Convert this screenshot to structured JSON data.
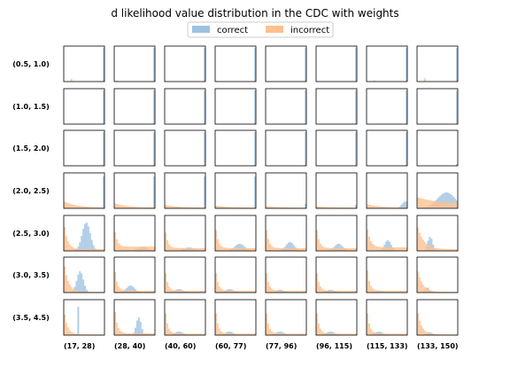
{
  "chart_data": {
    "type": "histogram-grid",
    "title": "d likelihood value distribution in the CDC with weights",
    "legend": {
      "placement": "top-center",
      "entries": [
        {
          "name": "correct",
          "color": "#9dc3e2"
        },
        {
          "name": "incorrect",
          "color": "#ffc08e"
        }
      ]
    },
    "row_labels": [
      "(0.5, 1.0)",
      "(1.0, 1.5)",
      "(1.5, 2.0)",
      "(2.0, 2.5)",
      "(2.5, 3.0)",
      "(3.0, 3.5)",
      "(3.5, 4.5)"
    ],
    "col_labels": [
      "(17, 28)",
      "(28, 40)",
      "(40, 60)",
      "(60, 77)",
      "(77, 96)",
      "(96, 115)",
      "(115, 133)",
      "(133, 150)"
    ],
    "x_range": [
      0,
      1
    ],
    "y_range": [
      0,
      1
    ],
    "bins": 24,
    "cells": [
      [
        {
          "correct": {
            "type": "spike",
            "pos": 0.98,
            "h": 0.95
          },
          "incorrect": {
            "type": "spike",
            "pos": 0.18,
            "h": 0.08
          }
        },
        {
          "correct": {
            "type": "spike",
            "pos": 0.99,
            "h": 0.95
          },
          "incorrect": {
            "type": "spike",
            "pos": 0.05,
            "h": 0.03
          }
        },
        {
          "correct": {
            "type": "spike",
            "pos": 0.99,
            "h": 0.95
          },
          "incorrect": {
            "type": "spike",
            "pos": 0.02,
            "h": 0.02
          }
        },
        {
          "correct": {
            "type": "spike",
            "pos": 0.99,
            "h": 0.95
          },
          "incorrect": {
            "type": "spike",
            "pos": 0.02,
            "h": 0.02
          }
        },
        {
          "correct": {
            "type": "spike",
            "pos": 0.99,
            "h": 0.95
          },
          "incorrect": {
            "type": "none"
          }
        },
        {
          "correct": {
            "type": "spike",
            "pos": 0.99,
            "h": 0.95
          },
          "incorrect": {
            "type": "none"
          }
        },
        {
          "correct": {
            "type": "spike",
            "pos": 0.99,
            "h": 0.95
          },
          "incorrect": {
            "type": "spike",
            "pos": 0.18,
            "h": 0.03
          }
        },
        {
          "correct": {
            "type": "spike",
            "pos": 0.99,
            "h": 0.95
          },
          "incorrect": {
            "type": "spike",
            "pos": 0.18,
            "h": 0.1
          }
        }
      ],
      [
        {
          "correct": {
            "type": "spike",
            "pos": 0.99,
            "h": 0.95
          },
          "incorrect": {
            "type": "none"
          }
        },
        {
          "correct": {
            "type": "spike",
            "pos": 0.99,
            "h": 0.95
          },
          "incorrect": {
            "type": "none"
          }
        },
        {
          "correct": {
            "type": "spike",
            "pos": 0.99,
            "h": 0.95
          },
          "incorrect": {
            "type": "none"
          }
        },
        {
          "correct": {
            "type": "spike",
            "pos": 0.99,
            "h": 0.95
          },
          "incorrect": {
            "type": "none"
          }
        },
        {
          "correct": {
            "type": "spike",
            "pos": 0.99,
            "h": 0.95
          },
          "incorrect": {
            "type": "none"
          }
        },
        {
          "correct": {
            "type": "spike",
            "pos": 0.99,
            "h": 0.95
          },
          "incorrect": {
            "type": "none"
          }
        },
        {
          "correct": {
            "type": "spike",
            "pos": 0.99,
            "h": 0.95
          },
          "incorrect": {
            "type": "none"
          }
        },
        {
          "correct": {
            "type": "spike",
            "pos": 0.99,
            "h": 0.95
          },
          "incorrect": {
            "type": "none"
          }
        }
      ],
      [
        {
          "correct": {
            "type": "spike",
            "pos": 0.99,
            "h": 0.95
          },
          "incorrect": {
            "type": "none"
          }
        },
        {
          "correct": {
            "type": "spike",
            "pos": 0.99,
            "h": 0.95
          },
          "incorrect": {
            "type": "none"
          }
        },
        {
          "correct": {
            "type": "spike",
            "pos": 0.99,
            "h": 0.95
          },
          "incorrect": {
            "type": "none"
          }
        },
        {
          "correct": {
            "type": "spike",
            "pos": 0.99,
            "h": 0.95
          },
          "incorrect": {
            "type": "none"
          }
        },
        {
          "correct": {
            "type": "spike",
            "pos": 0.99,
            "h": 0.95
          },
          "incorrect": {
            "type": "none"
          }
        },
        {
          "correct": {
            "type": "spike",
            "pos": 0.99,
            "h": 0.95
          },
          "incorrect": {
            "type": "none"
          }
        },
        {
          "correct": {
            "type": "spike",
            "pos": 0.99,
            "h": 0.95
          },
          "incorrect": {
            "type": "none"
          }
        },
        {
          "correct": {
            "type": "spike",
            "pos": 0.99,
            "h": 0.05
          },
          "incorrect": {
            "type": "none"
          }
        }
      ],
      [
        {
          "correct": {
            "type": "spike",
            "pos": 0.99,
            "h": 0.9
          },
          "incorrect": {
            "type": "decay",
            "h": 0.2,
            "rate": 0.3,
            "floor": 0.02
          }
        },
        {
          "correct": {
            "type": "spike",
            "pos": 0.99,
            "h": 0.9
          },
          "incorrect": {
            "type": "decay",
            "h": 0.15,
            "rate": 0.3,
            "floor": 0.02
          }
        },
        {
          "correct": {
            "type": "spike",
            "pos": 0.99,
            "h": 0.9
          },
          "incorrect": {
            "type": "decay",
            "h": 0.1,
            "rate": 0.3,
            "floor": 0.02
          }
        },
        {
          "correct": {
            "type": "spike",
            "pos": 0.99,
            "h": 0.9
          },
          "incorrect": {
            "type": "decay",
            "h": 0.08,
            "rate": 0.3,
            "floor": 0.02
          }
        },
        {
          "correct": {
            "type": "spike",
            "pos": 0.97,
            "h": 0.12
          },
          "incorrect": {
            "type": "decay",
            "h": 0.06,
            "rate": 0.3,
            "floor": 0.02
          }
        },
        {
          "correct": {
            "type": "spike",
            "pos": 0.97,
            "h": 0.1
          },
          "incorrect": {
            "type": "decay",
            "h": 0.06,
            "rate": 0.3,
            "floor": 0.02
          }
        },
        {
          "correct": {
            "type": "peak",
            "pos": 0.95,
            "h": 0.2,
            "width": 0.08
          },
          "incorrect": {
            "type": "decay",
            "h": 0.12,
            "rate": 0.3,
            "floor": 0.02
          }
        },
        {
          "correct": {
            "type": "peak",
            "pos": 0.72,
            "h": 0.45,
            "width": 0.22
          },
          "incorrect": {
            "type": "decay",
            "h": 0.32,
            "rate": 0.4,
            "floor": 0.15
          }
        }
      ],
      [
        {
          "correct": {
            "type": "peak",
            "pos": 0.55,
            "h": 0.8,
            "width": 0.1
          },
          "incorrect": {
            "type": "decay",
            "h": 0.85,
            "rate": 0.08,
            "floor": 0.05
          }
        },
        {
          "correct": {
            "type": "peak",
            "pos": 0.7,
            "h": 0.12,
            "width": 0.12
          },
          "incorrect": {
            "type": "decay",
            "h": 0.7,
            "rate": 0.06,
            "floor": 0.12
          }
        },
        {
          "correct": {
            "type": "peak",
            "pos": 0.6,
            "h": 0.1,
            "width": 0.12
          },
          "incorrect": {
            "type": "decay",
            "h": 0.7,
            "rate": 0.06,
            "floor": 0.08
          }
        },
        {
          "correct": {
            "type": "peak",
            "pos": 0.6,
            "h": 0.2,
            "width": 0.12
          },
          "incorrect": {
            "type": "decay",
            "h": 0.8,
            "rate": 0.06,
            "floor": 0.08
          }
        },
        {
          "correct": {
            "type": "peak",
            "pos": 0.6,
            "h": 0.25,
            "width": 0.1
          },
          "incorrect": {
            "type": "decay",
            "h": 0.8,
            "rate": 0.06,
            "floor": 0.08
          }
        },
        {
          "correct": {
            "type": "peak",
            "pos": 0.55,
            "h": 0.2,
            "width": 0.1
          },
          "incorrect": {
            "type": "decay",
            "h": 0.8,
            "rate": 0.06,
            "floor": 0.08
          }
        },
        {
          "correct": {
            "type": "peak",
            "pos": 0.52,
            "h": 0.3,
            "width": 0.08
          },
          "incorrect": {
            "type": "decay",
            "h": 0.75,
            "rate": 0.08,
            "floor": 0.1
          }
        },
        {
          "correct": {
            "type": "peak",
            "pos": 0.32,
            "h": 0.4,
            "width": 0.06
          },
          "incorrect": {
            "type": "decay",
            "h": 0.75,
            "rate": 0.15,
            "floor": 0.05
          }
        }
      ],
      [
        {
          "correct": {
            "type": "peak",
            "pos": 0.4,
            "h": 0.6,
            "width": 0.08
          },
          "incorrect": {
            "type": "decay",
            "h": 0.9,
            "rate": 0.1,
            "floor": 0.02
          }
        },
        {
          "correct": {
            "type": "peak",
            "pos": 0.4,
            "h": 0.2,
            "width": 0.1
          },
          "incorrect": {
            "type": "decay",
            "h": 0.8,
            "rate": 0.06,
            "floor": 0.05
          }
        },
        {
          "correct": {
            "type": "peak",
            "pos": 0.35,
            "h": 0.1,
            "width": 0.1
          },
          "incorrect": {
            "type": "decay",
            "h": 0.75,
            "rate": 0.06,
            "floor": 0.05
          }
        },
        {
          "correct": {
            "type": "peak",
            "pos": 0.35,
            "h": 0.1,
            "width": 0.1
          },
          "incorrect": {
            "type": "decay",
            "h": 0.75,
            "rate": 0.06,
            "floor": 0.05
          }
        },
        {
          "correct": {
            "type": "peak",
            "pos": 0.35,
            "h": 0.08,
            "width": 0.1
          },
          "incorrect": {
            "type": "decay",
            "h": 0.75,
            "rate": 0.06,
            "floor": 0.05
          }
        },
        {
          "correct": {
            "type": "peak",
            "pos": 0.35,
            "h": 0.08,
            "width": 0.1
          },
          "incorrect": {
            "type": "decay",
            "h": 0.75,
            "rate": 0.06,
            "floor": 0.05
          }
        },
        {
          "correct": {
            "type": "peak",
            "pos": 0.3,
            "h": 0.05,
            "width": 0.1
          },
          "incorrect": {
            "type": "decay",
            "h": 0.85,
            "rate": 0.06,
            "floor": 0.05
          }
        },
        {
          "correct": {
            "type": "peak",
            "pos": 0.25,
            "h": 0.15,
            "width": 0.05
          },
          "incorrect": {
            "type": "decay",
            "h": 0.7,
            "rate": 0.12,
            "floor": 0.02
          }
        }
      ],
      [
        {
          "correct": {
            "type": "spike",
            "pos": 0.35,
            "h": 0.8
          },
          "incorrect": {
            "type": "decay",
            "h": 0.75,
            "rate": 0.08,
            "floor": 0.02
          }
        },
        {
          "correct": {
            "type": "peak",
            "pos": 0.6,
            "h": 0.5,
            "width": 0.06
          },
          "incorrect": {
            "type": "decay",
            "h": 0.9,
            "rate": 0.06,
            "floor": 0.05
          }
        },
        {
          "correct": {
            "type": "peak",
            "pos": 0.35,
            "h": 0.1,
            "width": 0.1
          },
          "incorrect": {
            "type": "decay",
            "h": 0.85,
            "rate": 0.06,
            "floor": 0.04
          }
        },
        {
          "correct": {
            "type": "peak",
            "pos": 0.35,
            "h": 0.1,
            "width": 0.1
          },
          "incorrect": {
            "type": "decay",
            "h": 0.85,
            "rate": 0.06,
            "floor": 0.04
          }
        },
        {
          "correct": {
            "type": "peak",
            "pos": 0.35,
            "h": 0.1,
            "width": 0.1
          },
          "incorrect": {
            "type": "decay",
            "h": 0.85,
            "rate": 0.06,
            "floor": 0.04
          }
        },
        {
          "correct": {
            "type": "peak",
            "pos": 0.35,
            "h": 0.1,
            "width": 0.1
          },
          "incorrect": {
            "type": "decay",
            "h": 0.85,
            "rate": 0.06,
            "floor": 0.04
          }
        },
        {
          "correct": {
            "type": "peak",
            "pos": 0.3,
            "h": 0.1,
            "width": 0.1
          },
          "incorrect": {
            "type": "decay",
            "h": 0.85,
            "rate": 0.06,
            "floor": 0.04
          }
        },
        {
          "correct": {
            "type": "peak",
            "pos": 0.3,
            "h": 0.08,
            "width": 0.08
          },
          "incorrect": {
            "type": "decay",
            "h": 0.75,
            "rate": 0.1,
            "floor": 0.02
          }
        }
      ]
    ]
  }
}
